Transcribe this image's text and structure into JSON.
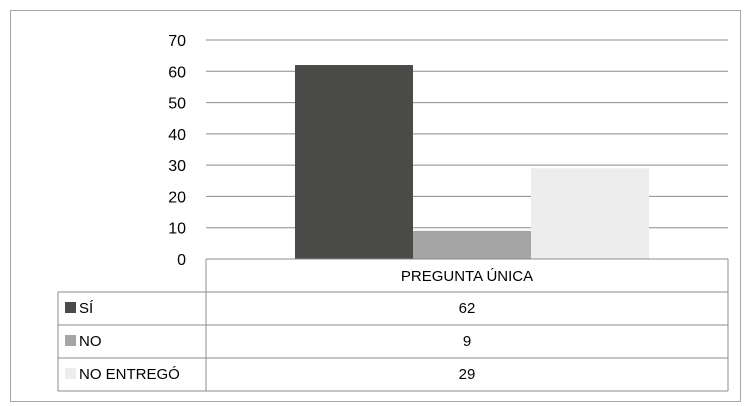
{
  "chart_data": {
    "type": "bar",
    "categories": [
      "PREGUNTA ÚNICA"
    ],
    "series": [
      {
        "name": "SÍ",
        "values": [
          62
        ],
        "color": "#4a4a48"
      },
      {
        "name": "NO",
        "values": [
          9
        ],
        "color": "#a5a5a5"
      },
      {
        "name": "NO ENTREGÓ",
        "values": [
          29
        ],
        "color": "#ededed"
      }
    ],
    "yticks": [
      "0",
      "10",
      "20",
      "30",
      "40",
      "50",
      "60",
      "70"
    ],
    "ylim": [
      0,
      70
    ],
    "grid": true,
    "legend": "data-table"
  }
}
